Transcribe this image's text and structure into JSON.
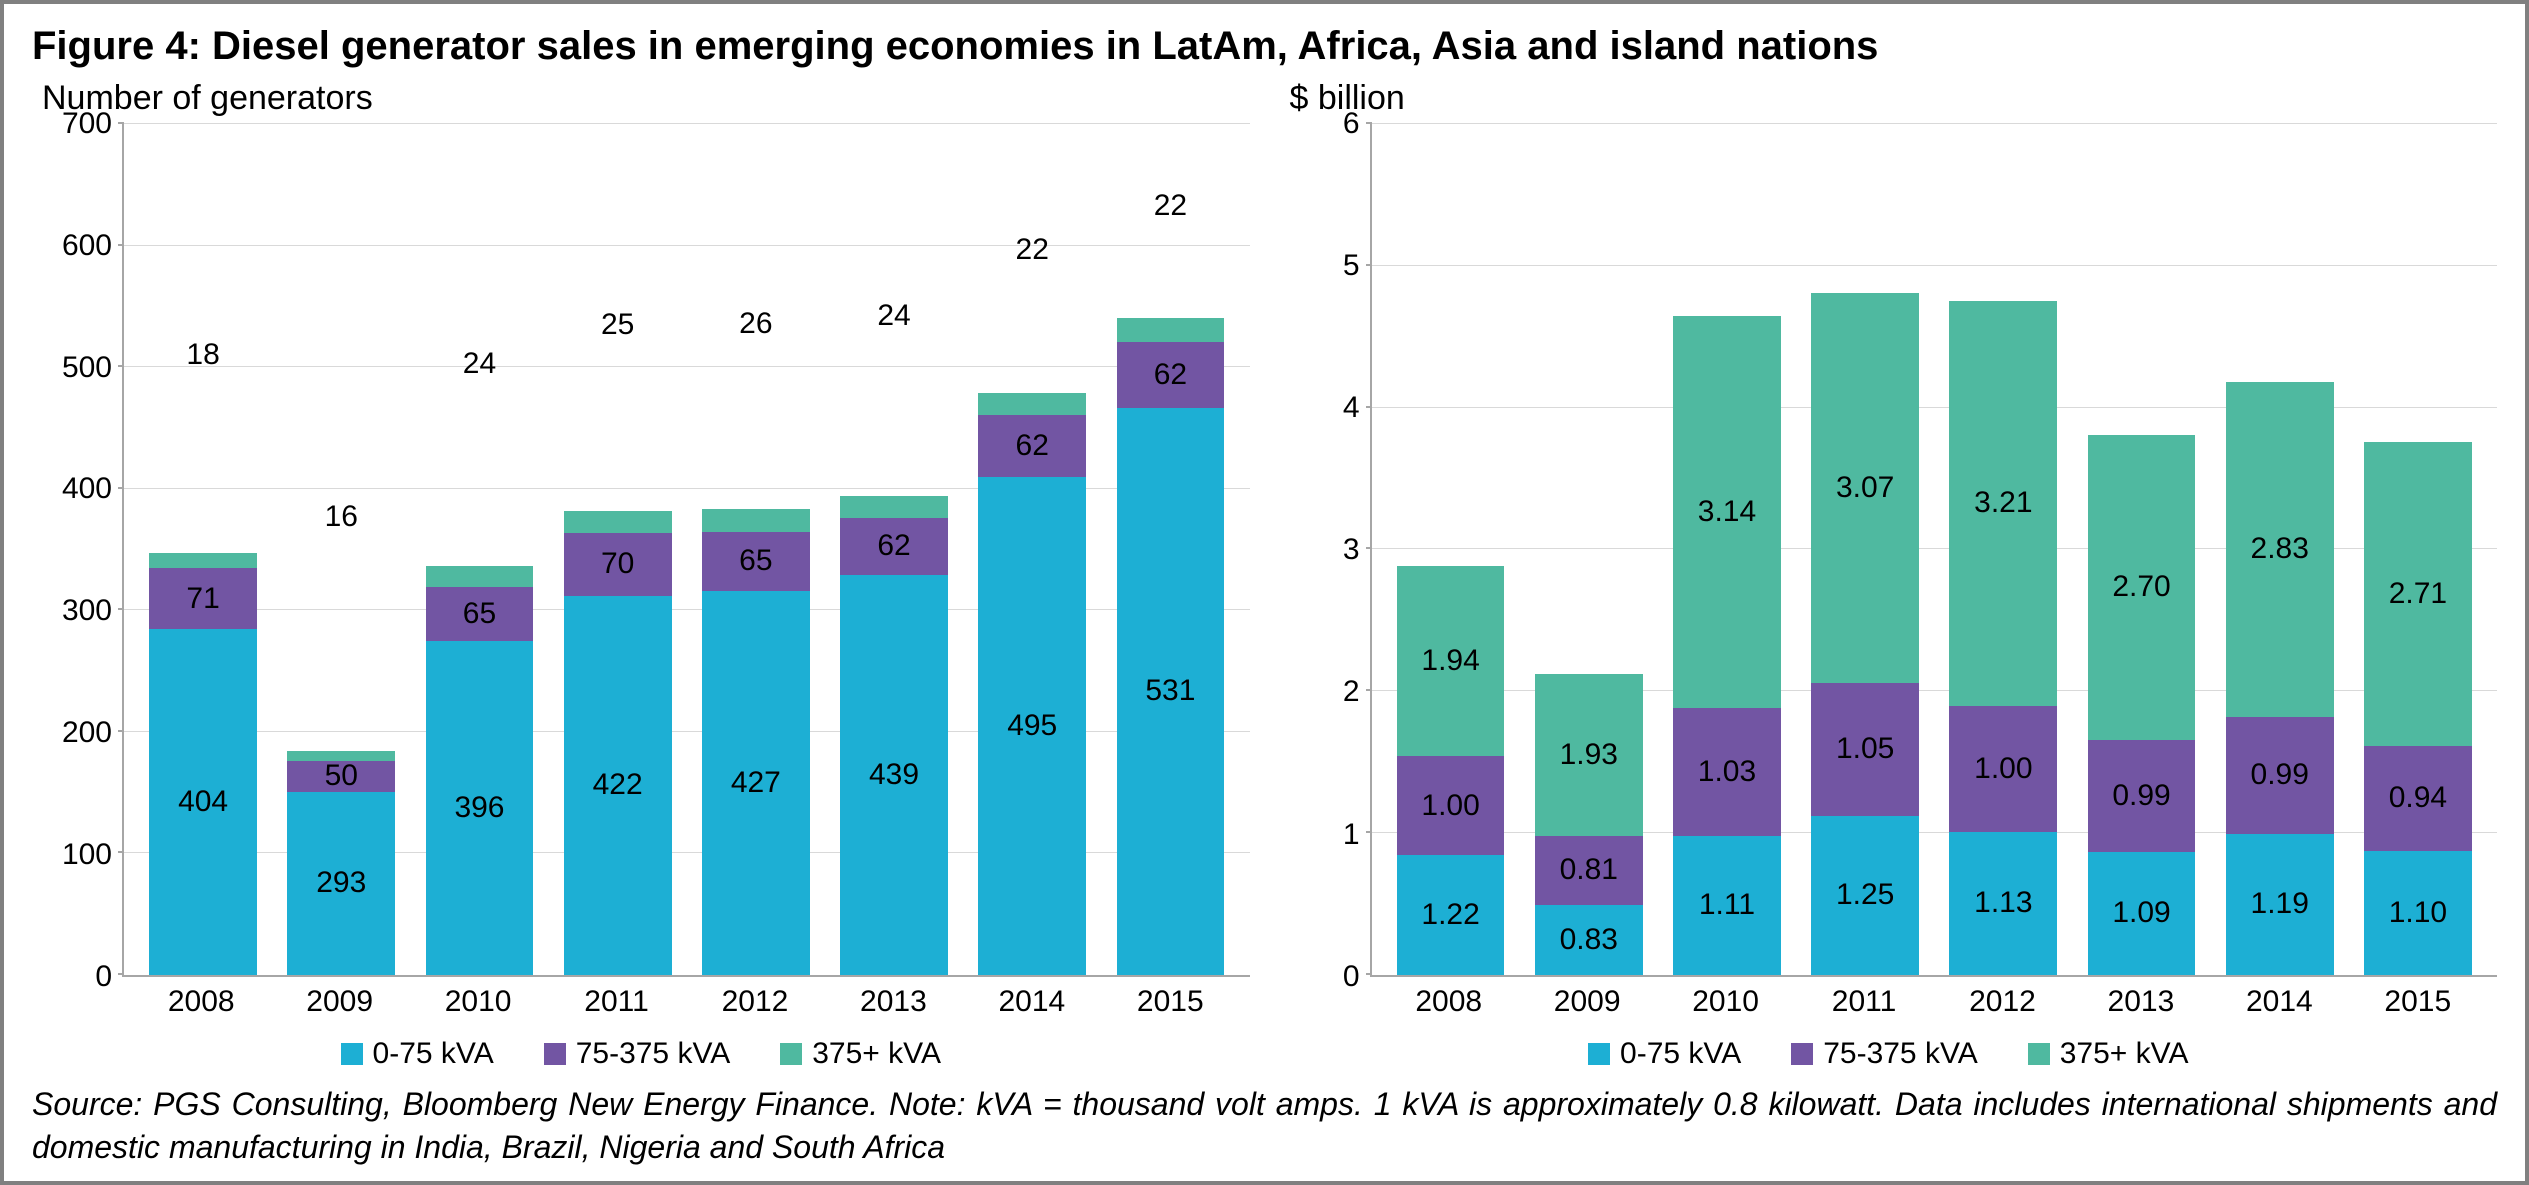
{
  "title": "Figure 4: Diesel generator sales in emerging economies in LatAm, Africa, Asia and island nations",
  "source": "Source: PGS Consulting, Bloomberg New Energy Finance. Note: kVA = thousand volt amps. 1 kVA is approximately 0.8 kilowatt. Data includes international shipments and domestic manufacturing in India, Brazil, Nigeria and South Africa",
  "colors": {
    "series1": "#1dafd4",
    "series2": "#7255a3",
    "series3": "#4fb9a0",
    "grid": "#d9d9d9",
    "axis": "#a6a6a6",
    "text": "#000000",
    "background": "#ffffff"
  },
  "legend": {
    "s1": "0-75 kVA",
    "s2": "75-375 kVA",
    "s3": "375+ kVA"
  },
  "left_chart": {
    "type": "stacked-bar",
    "subtitle": "Number of generators",
    "categories": [
      "2008",
      "2009",
      "2010",
      "2011",
      "2012",
      "2013",
      "2014",
      "2015"
    ],
    "y_max": 700,
    "y_ticks": [
      0,
      100,
      200,
      300,
      400,
      500,
      600,
      700
    ],
    "series1": [
      404,
      293,
      396,
      422,
      427,
      439,
      495,
      531
    ],
    "series2": [
      71,
      50,
      65,
      70,
      65,
      62,
      62,
      62
    ],
    "series3": [
      18,
      16,
      24,
      25,
      26,
      24,
      22,
      22
    ],
    "s1_labels": [
      "404",
      "293",
      "396",
      "422",
      "427",
      "439",
      "495",
      "531"
    ],
    "s2_labels": [
      "71",
      "50",
      "65",
      "70",
      "65",
      "62",
      "62",
      "62"
    ],
    "s3_labels": [
      "18",
      "16",
      "24",
      "25",
      "26",
      "24",
      "22",
      "22"
    ],
    "bar_width_pct": 78,
    "label_fontsize": 30
  },
  "right_chart": {
    "type": "stacked-bar",
    "subtitle": "$ billion",
    "categories": [
      "2008",
      "2009",
      "2010",
      "2011",
      "2012",
      "2013",
      "2014",
      "2015"
    ],
    "y_max": 6,
    "y_ticks": [
      0,
      1,
      2,
      3,
      4,
      5,
      6
    ],
    "series1": [
      1.22,
      0.83,
      1.11,
      1.25,
      1.13,
      1.09,
      1.19,
      1.1
    ],
    "series2": [
      1.0,
      0.81,
      1.03,
      1.05,
      1.0,
      0.99,
      0.99,
      0.94
    ],
    "series3": [
      1.94,
      1.93,
      3.14,
      3.07,
      3.21,
      2.7,
      2.83,
      2.71
    ],
    "s1_labels": [
      "1.22",
      "0.83",
      "1.11",
      "1.25",
      "1.13",
      "1.09",
      "1.19",
      "1.10"
    ],
    "s2_labels": [
      "1.00",
      "0.81",
      "1.03",
      "1.05",
      "1.00",
      "0.99",
      "0.99",
      "0.94"
    ],
    "s3_labels": [
      "1.94",
      "1.93",
      "3.14",
      "3.07",
      "3.21",
      "2.70",
      "2.83",
      "2.71"
    ],
    "bar_width_pct": 78,
    "label_fontsize": 30
  }
}
